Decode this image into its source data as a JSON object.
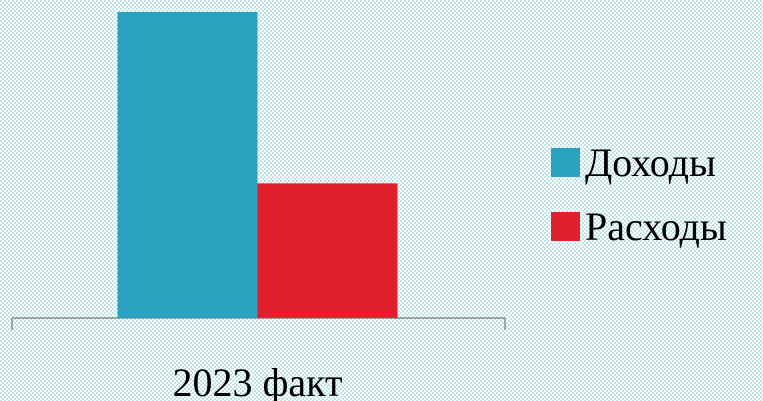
{
  "chart_data": {
    "type": "bar",
    "categories": [
      "2023 факт"
    ],
    "series": [
      {
        "name": "Доходы",
        "color": "#2aa2c0",
        "values": [
          100
        ]
      },
      {
        "name": "Расходы",
        "color": "#e0202a",
        "values": [
          44
        ]
      }
    ],
    "legend": "right"
  }
}
